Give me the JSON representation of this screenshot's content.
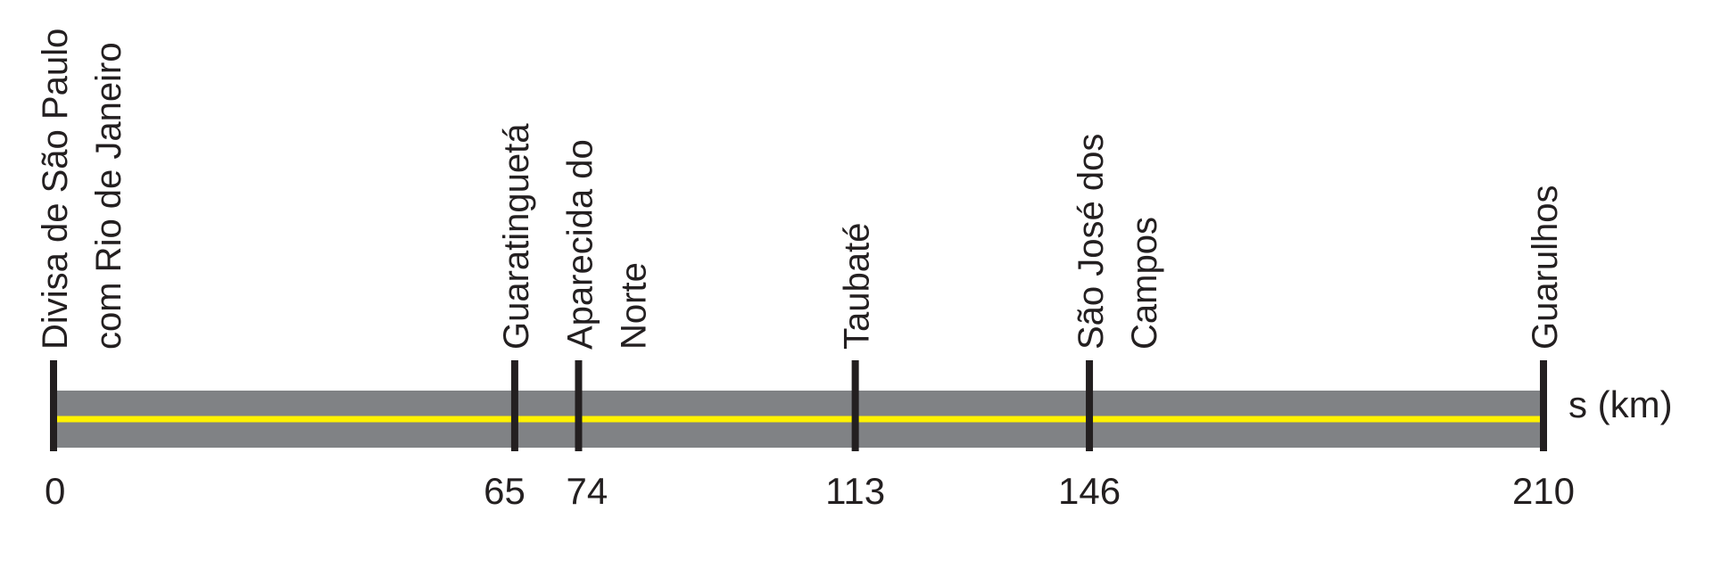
{
  "axis_label": "s (km)",
  "range_km": [
    0,
    210
  ],
  "colors": {
    "road": "#808285",
    "center_line": "#fff200",
    "marker": "#231f20",
    "text": "#231f20"
  },
  "points": [
    {
      "km": 0,
      "value_label": "0",
      "name_lines": [
        "Divisa de São Paulo",
        "com Rio de Janeiro"
      ]
    },
    {
      "km": 65,
      "value_label": "65",
      "name_lines": [
        "Guaratinguetá"
      ]
    },
    {
      "km": 74,
      "value_label": "74",
      "name_lines": [
        "Aparecida do",
        "Norte"
      ]
    },
    {
      "km": 113,
      "value_label": "113",
      "name_lines": [
        "Taubaté"
      ]
    },
    {
      "km": 146,
      "value_label": "146",
      "name_lines": [
        "São José dos",
        "Campos"
      ]
    },
    {
      "km": 210,
      "value_label": "210",
      "name_lines": [
        "Guarulhos"
      ]
    }
  ]
}
